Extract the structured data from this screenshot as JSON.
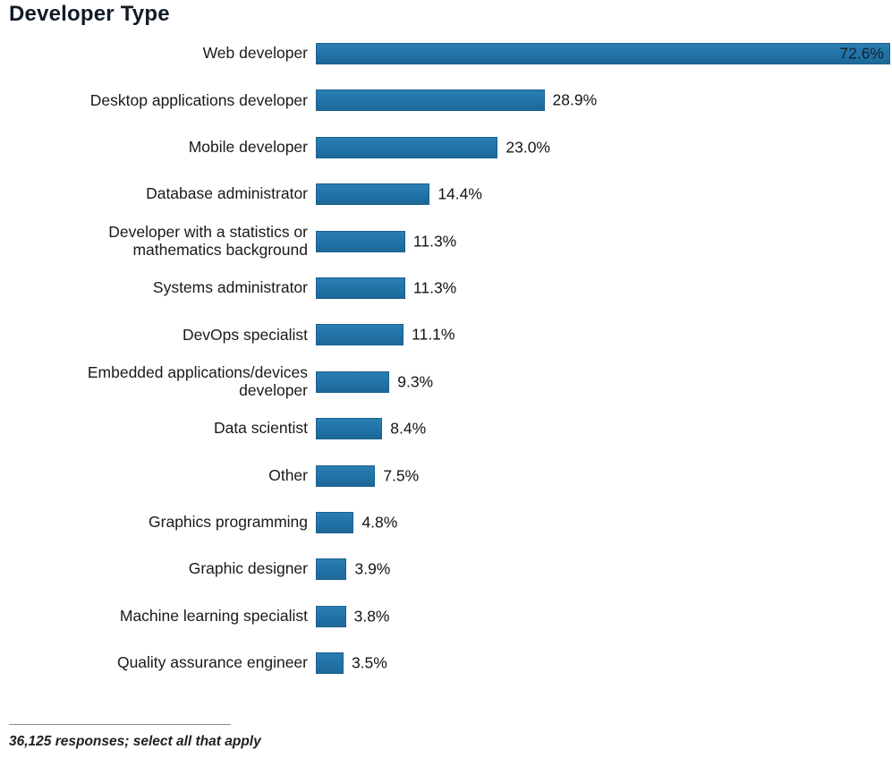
{
  "page": {
    "title": "Developer Type",
    "footnote": "36,125 responses; select all that apply"
  },
  "colors": {
    "bar_fill": "#2173a7",
    "bar_border": "#1b618d",
    "title_text": "#101c28",
    "label_text": "#1a1a1a",
    "value_text": "#141414",
    "inside_value_text": "#10222e",
    "divider": "#8c8c8c"
  },
  "chart_data": {
    "type": "bar",
    "orientation": "horizontal",
    "title": "Developer Type",
    "categories": [
      "Web developer",
      "Desktop applications developer",
      "Mobile developer",
      "Database administrator",
      "Developer with a statistics or\nmathematics background",
      "Systems administrator",
      "DevOps specialist",
      "Embedded applications/devices\ndeveloper",
      "Data scientist",
      "Other",
      "Graphics programming",
      "Graphic designer",
      "Machine learning specialist",
      "Quality assurance engineer"
    ],
    "values": [
      72.6,
      28.9,
      23.0,
      14.4,
      11.3,
      11.3,
      11.1,
      9.3,
      8.4,
      7.5,
      4.8,
      3.9,
      3.8,
      3.5
    ],
    "value_labels": [
      "72.6%",
      "28.9%",
      "23.0%",
      "14.4%",
      "11.3%",
      "11.3%",
      "11.1%",
      "9.3%",
      "8.4%",
      "7.5%",
      "4.8%",
      "3.9%",
      "3.8%",
      "3.5%"
    ],
    "xlim": [
      0,
      72.6
    ],
    "grid": false,
    "legend": "none",
    "value_label_placement": "outside, inside bar for the maximum value",
    "xlabel": "",
    "ylabel": "",
    "footnote": "36,125 responses; select all that apply"
  }
}
